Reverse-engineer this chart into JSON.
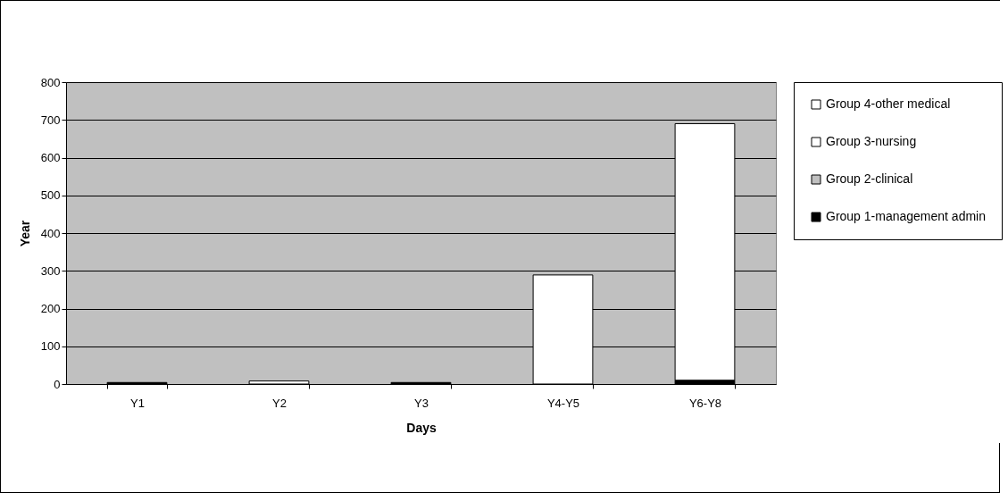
{
  "chart_data": {
    "type": "bar",
    "stacked": true,
    "xlabel": "Days",
    "ylabel": "Year",
    "categories": [
      "Y1",
      "Y2",
      "Y3",
      "Y4-Y5",
      "Y6-Y8"
    ],
    "series": [
      {
        "name": "Group 1-management admin",
        "color": "#000000",
        "values": [
          4,
          null,
          4,
          null,
          10
        ]
      },
      {
        "name": "Group 2-clinical",
        "color": "#c0c0c0",
        "values": [
          0,
          0,
          0,
          0,
          0
        ]
      },
      {
        "name": "Group 3-nursing",
        "color": "#ffffff",
        "values": [
          null,
          8,
          0,
          289,
          680
        ]
      },
      {
        "name": "Group 4-other medical",
        "color": "#ffffff",
        "values": [
          0,
          0,
          0,
          0,
          0
        ]
      }
    ],
    "ylim": [
      0,
      800
    ],
    "yticks": [
      0,
      100,
      200,
      300,
      400,
      500,
      600,
      700,
      800
    ],
    "grid": "y",
    "legend": "right"
  }
}
